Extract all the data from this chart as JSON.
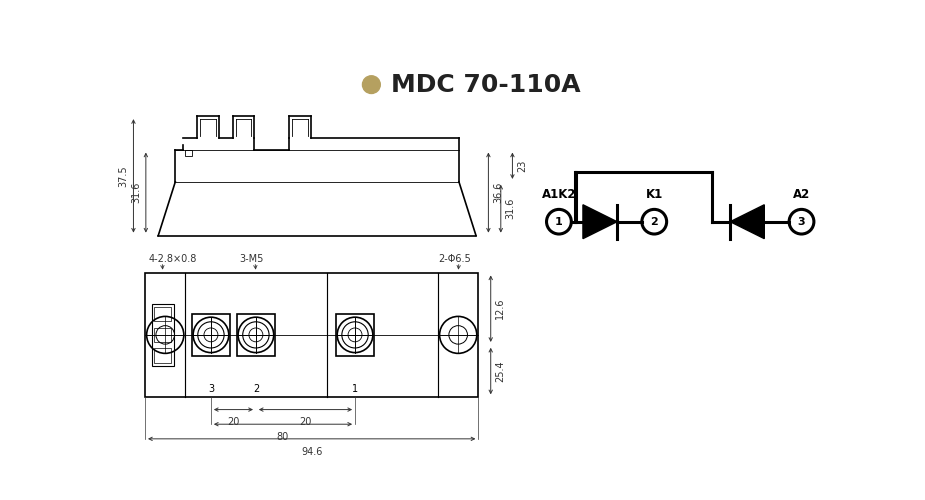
{
  "title": "MDC 70-110A",
  "title_color": "#222222",
  "title_bullet_color": "#b5a060",
  "bg_color": "#ffffff",
  "line_color": "#000000",
  "dim_color": "#333333",
  "font_size_title": 18,
  "top_view": {
    "dims_left": [
      "37.5",
      "31.6"
    ],
    "dims_right": [
      "36.6",
      "31.6",
      "23"
    ]
  },
  "bottom_view": {
    "labels": [
      "4-2.8×0.8",
      "3-M5",
      "2-Φ6.5"
    ],
    "dims_bottom": [
      "20",
      "20",
      "80",
      "94.6"
    ],
    "dims_right": [
      "12.6",
      "25.4"
    ],
    "pin_labels": [
      "3",
      "2",
      "1"
    ]
  },
  "circuit": {
    "label_A1K2": "A1K2",
    "label_K1": "K1",
    "label_A2": "A2",
    "pin1": "1",
    "pin2": "2",
    "pin3": "3"
  }
}
